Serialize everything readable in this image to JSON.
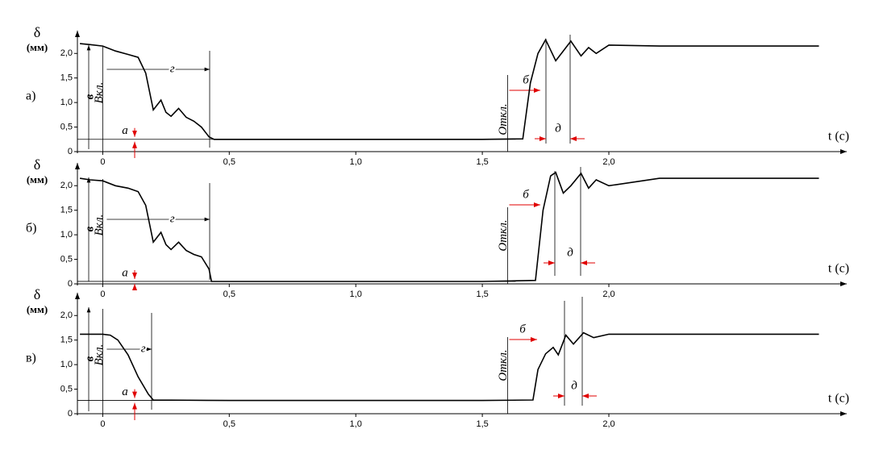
{
  "chart_data": [
    {
      "type": "line",
      "panel_label": "а)",
      "y_label": "δ",
      "y_unit": "(мм)",
      "x_label": "t (c)",
      "xlim": [
        -0.1,
        2.94
      ],
      "ylim": [
        0,
        2.3
      ],
      "xticks": [
        0,
        {
          "value": 0.5,
          "label": "0,5"
        },
        {
          "value": 1.0,
          "label": "1,0"
        },
        {
          "value": 1.5,
          "label": "1,5"
        },
        {
          "value": 2.0,
          "label": "2,0"
        }
      ],
      "yticks": [
        0,
        {
          "value": 0.5,
          "label": "0,5"
        },
        {
          "value": 1.0,
          "label": "1,0"
        },
        {
          "value": 1.5,
          "label": "1,5"
        },
        {
          "value": 2.0,
          "label": "2,0"
        }
      ],
      "annotations": {
        "on": "Вкл.",
        "off": "Откл.",
        "a": "а",
        "b": "б",
        "v": "в",
        "g": "г",
        "d": "д"
      },
      "x": [
        -0.09,
        -0.05,
        0,
        0.05,
        0.1,
        0.14,
        0.17,
        0.2,
        0.23,
        0.25,
        0.27,
        0.3,
        0.33,
        0.36,
        0.39,
        0.42,
        0.44,
        1.0,
        1.5,
        1.66,
        1.69,
        1.72,
        1.75,
        1.79,
        1.82,
        1.85,
        1.89,
        1.92,
        1.95,
        2.0,
        2.2,
        2.5,
        2.83
      ],
      "series": [
        {
          "color": "#000000",
          "values": [
            2.2,
            2.18,
            2.15,
            2.05,
            1.98,
            1.92,
            1.6,
            0.85,
            1.05,
            0.8,
            0.72,
            0.88,
            0.7,
            0.62,
            0.5,
            0.3,
            0.25,
            0.25,
            0.25,
            0.26,
            1.4,
            2.0,
            2.28,
            1.85,
            2.05,
            2.25,
            1.95,
            2.12,
            2.0,
            2.17,
            2.15,
            2.15,
            2.15
          ]
        }
      ]
    },
    {
      "type": "line",
      "panel_label": "б)",
      "y_label": "δ",
      "y_unit": "(мм)",
      "x_label": "t (c)",
      "xlim": [
        -0.1,
        2.94
      ],
      "ylim": [
        0,
        2.3
      ],
      "xticks": [
        0,
        {
          "value": 0.5,
          "label": "0,5"
        },
        {
          "value": 1.0,
          "label": "1,0"
        },
        {
          "value": 1.5,
          "label": "1,5"
        },
        {
          "value": 2.0,
          "label": "2,0"
        }
      ],
      "yticks": [
        0,
        {
          "value": 0.5,
          "label": "0,5"
        },
        {
          "value": 1.0,
          "label": "1,0"
        },
        {
          "value": 1.5,
          "label": "1,5"
        },
        {
          "value": 2.0,
          "label": "2,0"
        }
      ],
      "annotations": {
        "on": "Вкл.",
        "off": "Откл.",
        "a": "а",
        "b": "б",
        "v": "в",
        "g": "г",
        "d": "д"
      },
      "x": [
        -0.09,
        -0.05,
        0,
        0.05,
        0.1,
        0.14,
        0.17,
        0.2,
        0.23,
        0.25,
        0.27,
        0.3,
        0.33,
        0.36,
        0.39,
        0.42,
        0.43,
        1.0,
        1.5,
        1.71,
        1.74,
        1.77,
        1.79,
        1.82,
        1.85,
        1.89,
        1.92,
        1.95,
        2.0,
        2.2,
        2.5,
        2.83
      ],
      "series": [
        {
          "color": "#000000",
          "values": [
            2.15,
            2.12,
            2.1,
            2.0,
            1.95,
            1.88,
            1.6,
            0.85,
            1.05,
            0.8,
            0.7,
            0.85,
            0.68,
            0.6,
            0.55,
            0.3,
            0.05,
            0.05,
            0.05,
            0.07,
            1.5,
            2.2,
            2.27,
            1.85,
            2.0,
            2.25,
            1.95,
            2.12,
            2.0,
            2.15,
            2.15,
            2.15
          ]
        }
      ]
    },
    {
      "type": "line",
      "panel_label": "в)",
      "y_label": "δ",
      "y_unit": "(мм)",
      "x_label": "t (c)",
      "xlim": [
        -0.1,
        2.94
      ],
      "ylim": [
        0,
        2.3
      ],
      "xticks": [
        0,
        {
          "value": 0.5,
          "label": "0,5"
        },
        {
          "value": 1.0,
          "label": "1,0"
        },
        {
          "value": 1.5,
          "label": "1,5"
        },
        {
          "value": 2.0,
          "label": "2,0"
        }
      ],
      "yticks": [
        0,
        {
          "value": 0.5,
          "label": "0,5"
        },
        {
          "value": 1.0,
          "label": "1,0"
        },
        {
          "value": 1.5,
          "label": "1,5"
        },
        {
          "value": 2.0,
          "label": "2,0"
        }
      ],
      "annotations": {
        "on": "Вкл.",
        "off": "Откл.",
        "a": "а",
        "b": "б",
        "v": "в",
        "g": "г",
        "d": "д"
      },
      "x": [
        -0.09,
        0,
        0.03,
        0.06,
        0.1,
        0.14,
        0.18,
        0.2,
        0.5,
        1.0,
        1.5,
        1.7,
        1.72,
        1.75,
        1.78,
        1.8,
        1.83,
        1.86,
        1.9,
        1.94,
        2.0,
        2.5,
        2.83
      ],
      "series": [
        {
          "color": "#000000",
          "values": [
            1.62,
            1.62,
            1.6,
            1.5,
            1.2,
            0.75,
            0.4,
            0.28,
            0.27,
            0.27,
            0.27,
            0.28,
            0.9,
            1.22,
            1.35,
            1.2,
            1.6,
            1.42,
            1.65,
            1.55,
            1.62,
            1.62,
            1.62
          ]
        }
      ]
    }
  ]
}
